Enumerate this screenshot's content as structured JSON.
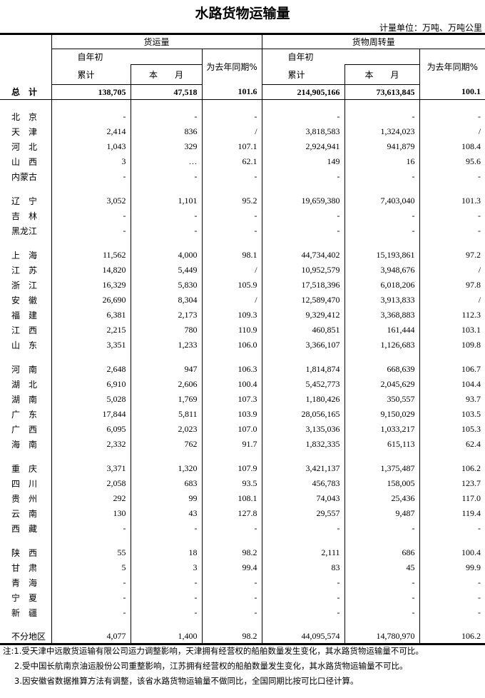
{
  "title": "水路货物运输量",
  "unit": "计量单位：万吨、万吨公里",
  "header": {
    "freight_volume": "货运量",
    "turnover": "货物周转量",
    "ytd_top": "自年初",
    "ytd_bottom": "累计",
    "this_month": "本　　月",
    "yoy": "为去年同期%"
  },
  "total": {
    "name": "总　计",
    "values": [
      "138,705",
      "47,518",
      "101.6",
      "214,905,166",
      "73,613,845",
      "100.1"
    ]
  },
  "groups": [
    [
      {
        "name": "北　京",
        "values": [
          "-",
          "-",
          "-",
          "-",
          "-",
          "-"
        ]
      },
      {
        "name": "天　津",
        "values": [
          "2,414",
          "836",
          "/",
          "3,818,583",
          "1,324,023",
          "/"
        ]
      },
      {
        "name": "河　北",
        "values": [
          "1,043",
          "329",
          "107.1",
          "2,924,941",
          "941,879",
          "108.4"
        ]
      },
      {
        "name": "山　西",
        "values": [
          "3",
          "…",
          "62.1",
          "149",
          "16",
          "95.6"
        ]
      },
      {
        "name": "内蒙古",
        "values": [
          "-",
          "-",
          "-",
          "-",
          "-",
          "-"
        ]
      }
    ],
    [
      {
        "name": "辽　宁",
        "values": [
          "3,052",
          "1,101",
          "95.2",
          "19,659,380",
          "7,403,040",
          "101.3"
        ]
      },
      {
        "name": "吉　林",
        "values": [
          "-",
          "-",
          "-",
          "-",
          "-",
          "-"
        ]
      },
      {
        "name": "黑龙江",
        "values": [
          "-",
          "-",
          "-",
          "-",
          "-",
          "-"
        ]
      }
    ],
    [
      {
        "name": "上　海",
        "values": [
          "11,562",
          "4,000",
          "98.1",
          "44,734,402",
          "15,193,861",
          "97.2"
        ]
      },
      {
        "name": "江　苏",
        "values": [
          "14,820",
          "5,449",
          "/",
          "10,952,579",
          "3,948,676",
          "/"
        ]
      },
      {
        "name": "浙　江",
        "values": [
          "16,329",
          "5,830",
          "105.9",
          "17,518,396",
          "6,018,206",
          "97.8"
        ]
      },
      {
        "name": "安　徽",
        "values": [
          "26,690",
          "8,304",
          "/",
          "12,589,470",
          "3,913,833",
          "/"
        ]
      },
      {
        "name": "福　建",
        "values": [
          "6,381",
          "2,173",
          "109.3",
          "9,329,412",
          "3,368,883",
          "112.3"
        ]
      },
      {
        "name": "江　西",
        "values": [
          "2,215",
          "780",
          "110.9",
          "460,851",
          "161,444",
          "103.1"
        ]
      },
      {
        "name": "山　东",
        "values": [
          "3,351",
          "1,233",
          "106.0",
          "3,366,107",
          "1,126,683",
          "109.8"
        ]
      }
    ],
    [
      {
        "name": "河　南",
        "values": [
          "2,648",
          "947",
          "106.3",
          "1,814,874",
          "668,639",
          "106.7"
        ]
      },
      {
        "name": "湖　北",
        "values": [
          "6,910",
          "2,606",
          "100.4",
          "5,452,773",
          "2,045,629",
          "104.4"
        ]
      },
      {
        "name": "湖　南",
        "values": [
          "5,028",
          "1,769",
          "107.3",
          "1,180,426",
          "350,557",
          "93.7"
        ]
      },
      {
        "name": "广　东",
        "values": [
          "17,844",
          "5,811",
          "103.9",
          "28,056,165",
          "9,150,029",
          "103.5"
        ]
      },
      {
        "name": "广　西",
        "values": [
          "6,095",
          "2,023",
          "107.0",
          "3,135,036",
          "1,033,217",
          "105.3"
        ]
      },
      {
        "name": "海　南",
        "values": [
          "2,332",
          "762",
          "91.7",
          "1,832,335",
          "615,113",
          "62.4"
        ]
      }
    ],
    [
      {
        "name": "重　庆",
        "values": [
          "3,371",
          "1,320",
          "107.9",
          "3,421,137",
          "1,375,487",
          "106.2"
        ]
      },
      {
        "name": "四　川",
        "values": [
          "2,058",
          "683",
          "93.5",
          "456,783",
          "158,005",
          "123.7"
        ]
      },
      {
        "name": "贵　州",
        "values": [
          "292",
          "99",
          "108.1",
          "74,043",
          "25,436",
          "117.0"
        ]
      },
      {
        "name": "云　南",
        "values": [
          "130",
          "43",
          "127.8",
          "29,557",
          "9,487",
          "119.4"
        ]
      },
      {
        "name": "西　藏",
        "values": [
          "-",
          "-",
          "-",
          "-",
          "-",
          "-"
        ]
      }
    ],
    [
      {
        "name": "陕　西",
        "values": [
          "55",
          "18",
          "98.2",
          "2,111",
          "686",
          "100.4"
        ]
      },
      {
        "name": "甘　肃",
        "values": [
          "5",
          "3",
          "99.4",
          "83",
          "45",
          "99.9"
        ]
      },
      {
        "name": "青　海",
        "values": [
          "-",
          "-",
          "-",
          "-",
          "-",
          "-"
        ]
      },
      {
        "name": "宁　夏",
        "values": [
          "-",
          "-",
          "-",
          "-",
          "-",
          "-"
        ]
      },
      {
        "name": "新　疆",
        "values": [
          "-",
          "-",
          "-",
          "-",
          "-",
          "-"
        ]
      }
    ],
    [
      {
        "name": "不分地区",
        "values": [
          "4,077",
          "1,400",
          "98.2",
          "44,095,574",
          "14,780,970",
          "106.2"
        ]
      }
    ]
  ],
  "notes": [
    "注:1.受天津中远散货运输有限公司运力调整影响，天津拥有经营权的船舶数量发生变化，其水路货物运输量不可比。",
    "2.受中国长航南京油运股份公司重整影响，江苏拥有经营权的船舶数量发生变化，其水路货物运输量不可比。",
    "3.因安徽省数据推算方法有调整，该省水路货物运输量不做同比，全国同期比按可比口径计算。"
  ]
}
